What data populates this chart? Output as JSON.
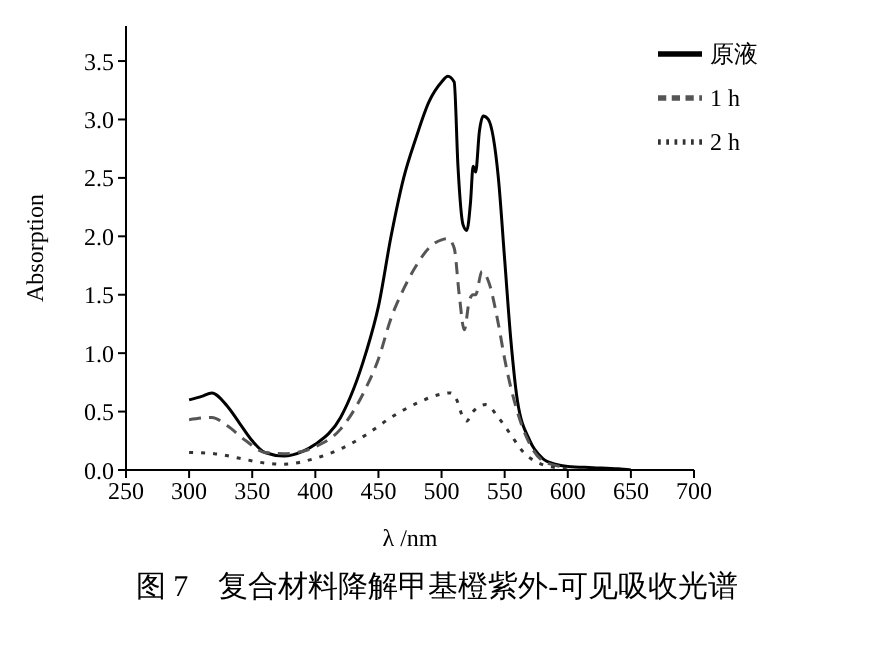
{
  "chart_data": {
    "type": "line",
    "xlabel": "λ /nm",
    "ylabel": "Absorption",
    "xlim": [
      250,
      700
    ],
    "xticks": [
      250,
      300,
      350,
      400,
      450,
      500,
      550,
      600,
      650,
      700
    ],
    "ylim": [
      0,
      3.8
    ],
    "yticks": [
      {
        "value": 0,
        "label": "0.0"
      },
      0.5,
      {
        "value": 1,
        "label": "1.0"
      },
      1.5,
      {
        "value": 2,
        "label": "2.0"
      },
      2.5,
      {
        "value": 3,
        "label": "3.0"
      },
      3.5
    ],
    "grid": false,
    "legend": "top right",
    "marker": "none",
    "annotations": [
      "图 7　复合材料降解甲基橙紫外-可见吸收光谱"
    ],
    "series": [
      {
        "name": "原液",
        "color": "#000000",
        "line_style": "solid",
        "x": [
          300,
          310,
          318,
          330,
          340,
          350,
          360,
          375,
          390,
          400,
          420,
          440,
          450,
          460,
          470,
          480,
          490,
          500,
          505,
          510,
          513,
          517,
          520,
          523,
          525,
          527,
          530,
          533,
          537,
          545,
          550,
          555,
          560,
          570,
          580,
          590,
          600,
          620,
          640,
          650
        ],
        "values": [
          0.6,
          0.63,
          0.66,
          0.55,
          0.4,
          0.25,
          0.15,
          0.12,
          0.16,
          0.22,
          0.45,
          1.0,
          1.4,
          2.0,
          2.5,
          2.85,
          3.15,
          3.32,
          3.37,
          3.32,
          2.6,
          2.1,
          2.05,
          2.3,
          2.6,
          2.55,
          2.9,
          3.03,
          3.0,
          2.5,
          1.8,
          1.1,
          0.6,
          0.25,
          0.1,
          0.05,
          0.03,
          0.02,
          0.01,
          0
        ]
      },
      {
        "name": "1 h",
        "color": "#555555",
        "line_style": "dashed",
        "x": [
          300,
          318,
          330,
          345,
          360,
          375,
          390,
          400,
          420,
          440,
          450,
          460,
          470,
          480,
          490,
          500,
          505,
          510,
          514,
          518,
          522,
          525,
          527,
          532,
          537,
          545,
          550,
          560,
          570,
          580,
          590,
          600
        ],
        "values": [
          0.43,
          0.45,
          0.38,
          0.25,
          0.15,
          0.14,
          0.16,
          0.2,
          0.35,
          0.7,
          0.95,
          1.3,
          1.55,
          1.75,
          1.9,
          1.97,
          1.98,
          1.9,
          1.5,
          1.2,
          1.45,
          1.5,
          1.5,
          1.7,
          1.62,
          1.25,
          0.95,
          0.5,
          0.22,
          0.08,
          0.04,
          0.02
        ]
      },
      {
        "name": "2 h",
        "color": "#333333",
        "line_style": "dotted",
        "x": [
          300,
          320,
          340,
          360,
          375,
          400,
          420,
          440,
          460,
          480,
          500,
          507,
          512,
          517,
          520,
          525,
          535,
          545,
          555,
          565,
          575,
          590,
          600
        ],
        "values": [
          0.15,
          0.14,
          0.1,
          0.06,
          0.05,
          0.1,
          0.18,
          0.3,
          0.45,
          0.57,
          0.65,
          0.66,
          0.6,
          0.45,
          0.42,
          0.5,
          0.56,
          0.45,
          0.3,
          0.15,
          0.07,
          0.02,
          0.01
        ]
      }
    ]
  }
}
